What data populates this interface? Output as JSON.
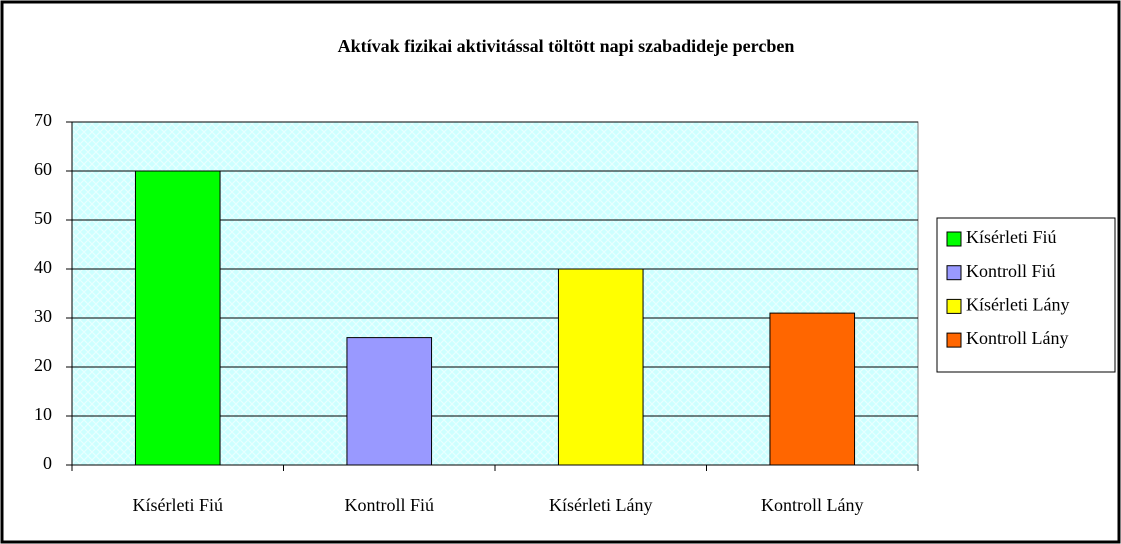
{
  "chart_data": {
    "type": "bar",
    "title": "Aktívak fizikai aktivitással töltött napi szabadideje percben",
    "categories": [
      "Kísérleti Fiú",
      "Kontroll Fiú",
      "Kísérleti Lány",
      "Kontroll Lány"
    ],
    "values": [
      60,
      26,
      40,
      31
    ],
    "colors": [
      "#00ff00",
      "#9999ff",
      "#ffff00",
      "#ff6600"
    ],
    "ylim": [
      0,
      70
    ],
    "yticks": [
      0,
      10,
      20,
      30,
      40,
      50,
      60,
      70
    ],
    "grid": true,
    "legend": "right"
  }
}
